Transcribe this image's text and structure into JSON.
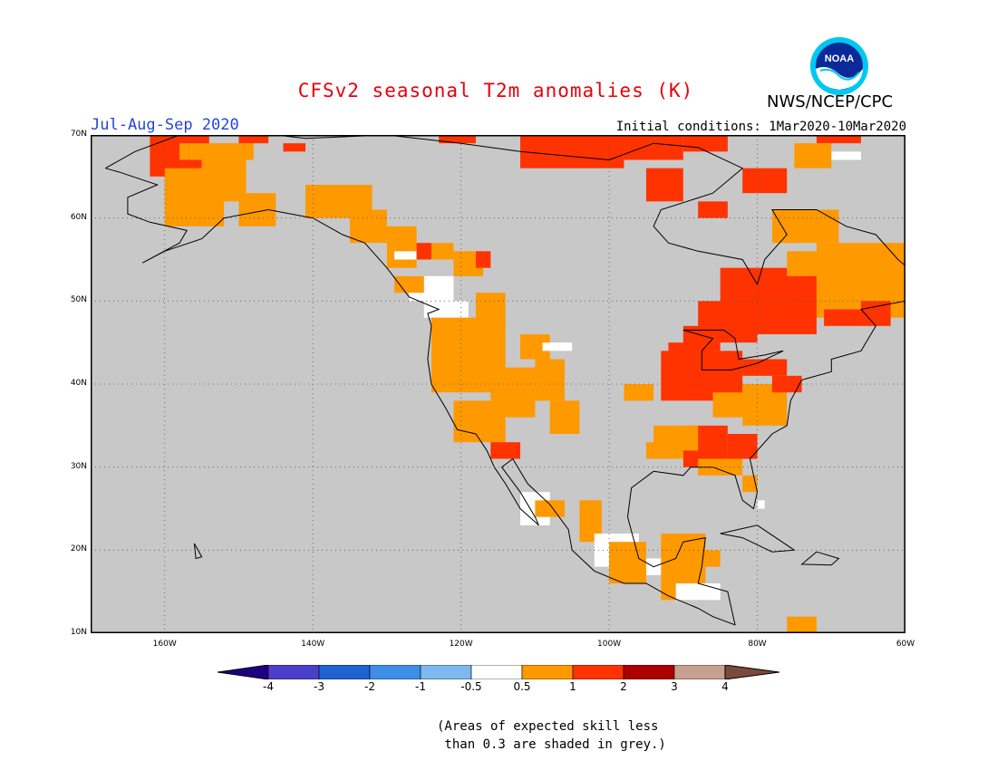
{
  "title": "CFSv2 seasonal T2m anomalies (K)",
  "period": "Jul-Aug-Sep 2020",
  "agency": "NWS/NCEP/CPC",
  "initial_conditions": "Initial conditions: 1Mar2020-10Mar2020",
  "logo_text": "NOAA",
  "lat_labels": [
    "70N",
    "60N",
    "50N",
    "40N",
    "30N",
    "20N",
    "10N"
  ],
  "lon_labels": [
    "160W",
    "140W",
    "120W",
    "100W",
    "80W",
    "60W"
  ],
  "colorbar": {
    "labels": [
      "-4",
      "-3",
      "-2",
      "-1",
      "-0.5",
      "0.5",
      "1",
      "2",
      "3",
      "4"
    ],
    "colors": [
      "#1e0082",
      "#4c3fc9",
      "#1f63d1",
      "#3d8ee8",
      "#7eb8f0",
      "#ffffff",
      "#ff9900",
      "#ff3300",
      "#aa0000",
      "#c8a090",
      "#7a4a3a"
    ]
  },
  "note_line1": "(Areas of expected skill less",
  "note_line2": " than 0.3 are shaded in grey.)",
  "colors": {
    "grey": "#c8c8c8",
    "orange": "#ff9900",
    "red": "#ff3300",
    "white": "#ffffff",
    "title": "#e8000b",
    "period": "#2446d8"
  }
}
